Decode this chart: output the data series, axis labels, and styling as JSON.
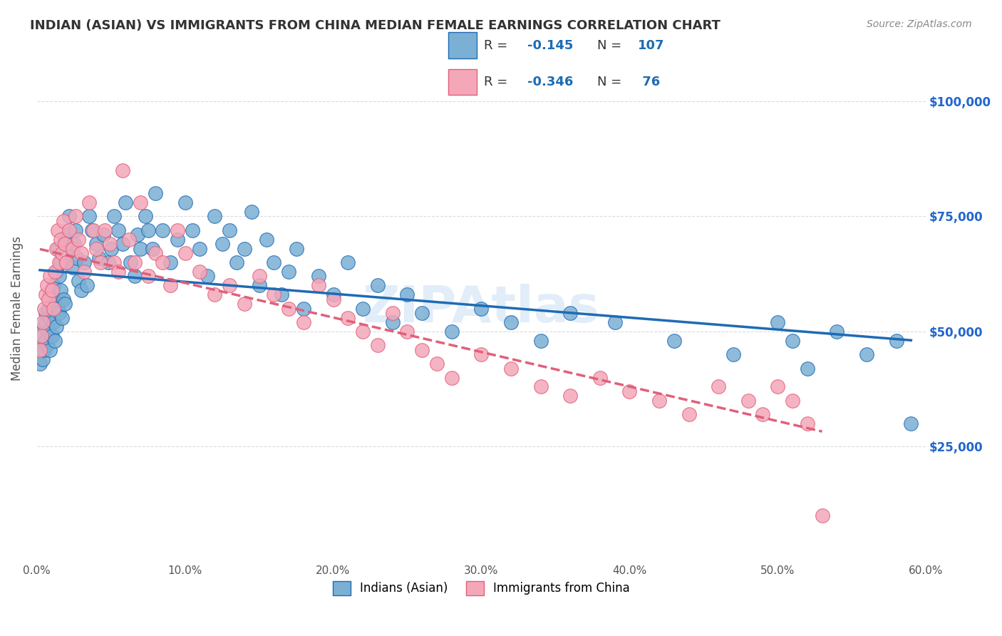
{
  "title": "INDIAN (ASIAN) VS IMMIGRANTS FROM CHINA MEDIAN FEMALE EARNINGS CORRELATION CHART",
  "source": "Source: ZipAtlas.com",
  "ylabel": "Median Female Earnings",
  "xlabel": "",
  "watermark": "ZIPAtlas",
  "legend_r1": "R = ",
  "legend_r1_val": "-0.145",
  "legend_n1": "N = ",
  "legend_n1_val": "107",
  "legend_r2": "R = ",
  "legend_r2_val": "-0.346",
  "legend_n2": "N = ",
  "legend_n2_val": " 76",
  "legend_label1": "Indians (Asian)",
  "legend_label2": "Immigrants from China",
  "xlim": [
    0.0,
    0.6
  ],
  "ylim": [
    0,
    110000
  ],
  "xticks": [
    0.0,
    0.1,
    0.2,
    0.3,
    0.4,
    0.5,
    0.6
  ],
  "xtick_labels": [
    "0.0%",
    "10.0%",
    "20.0%",
    "30.0%",
    "40.0%",
    "50.0%",
    "60.0%"
  ],
  "yticks": [
    25000,
    50000,
    75000,
    100000
  ],
  "ytick_labels": [
    "$25,000",
    "$50,000",
    "$75,000",
    "$100,000"
  ],
  "color_blue": "#7BAFD4",
  "color_pink": "#F4A7B9",
  "color_blue_line": "#1E6BB5",
  "color_pink_line": "#E0607A",
  "color_blue_dark": "#2255AA",
  "color_pink_dark": "#E05080",
  "background_color": "#FFFFFF",
  "grid_color": "#CCCCCC",
  "title_color": "#333333",
  "right_axis_color": "#2266CC",
  "seed": 42,
  "blue_x": [
    0.002,
    0.003,
    0.004,
    0.004,
    0.005,
    0.005,
    0.006,
    0.006,
    0.006,
    0.007,
    0.008,
    0.008,
    0.009,
    0.009,
    0.009,
    0.01,
    0.01,
    0.011,
    0.011,
    0.012,
    0.012,
    0.013,
    0.013,
    0.014,
    0.014,
    0.015,
    0.015,
    0.016,
    0.016,
    0.017,
    0.018,
    0.019,
    0.019,
    0.02,
    0.021,
    0.022,
    0.023,
    0.024,
    0.025,
    0.026,
    0.027,
    0.028,
    0.03,
    0.032,
    0.034,
    0.035,
    0.037,
    0.04,
    0.042,
    0.045,
    0.048,
    0.05,
    0.052,
    0.055,
    0.058,
    0.06,
    0.063,
    0.066,
    0.068,
    0.07,
    0.073,
    0.075,
    0.078,
    0.08,
    0.085,
    0.09,
    0.095,
    0.1,
    0.105,
    0.11,
    0.115,
    0.12,
    0.125,
    0.13,
    0.135,
    0.14,
    0.145,
    0.15,
    0.155,
    0.16,
    0.165,
    0.17,
    0.175,
    0.18,
    0.19,
    0.2,
    0.21,
    0.22,
    0.23,
    0.24,
    0.25,
    0.26,
    0.28,
    0.3,
    0.32,
    0.34,
    0.36,
    0.39,
    0.43,
    0.47,
    0.5,
    0.51,
    0.52,
    0.54,
    0.56,
    0.58,
    0.59
  ],
  "blue_y": [
    43000,
    47000,
    44000,
    49000,
    46000,
    51000,
    48000,
    52000,
    54000,
    47000,
    50000,
    55000,
    46000,
    53000,
    58000,
    49000,
    56000,
    52000,
    60000,
    48000,
    57000,
    51000,
    63000,
    55000,
    68000,
    54000,
    62000,
    59000,
    65000,
    53000,
    57000,
    56000,
    70000,
    65000,
    71000,
    75000,
    68000,
    64000,
    69000,
    72000,
    66000,
    61000,
    59000,
    65000,
    60000,
    75000,
    72000,
    69000,
    66000,
    71000,
    65000,
    68000,
    75000,
    72000,
    69000,
    78000,
    65000,
    62000,
    71000,
    68000,
    75000,
    72000,
    68000,
    80000,
    72000,
    65000,
    70000,
    78000,
    72000,
    68000,
    62000,
    75000,
    69000,
    72000,
    65000,
    68000,
    76000,
    60000,
    70000,
    65000,
    58000,
    63000,
    68000,
    55000,
    62000,
    58000,
    65000,
    55000,
    60000,
    52000,
    58000,
    54000,
    50000,
    55000,
    52000,
    48000,
    54000,
    52000,
    48000,
    45000,
    52000,
    48000,
    42000,
    50000,
    45000,
    48000,
    30000
  ],
  "pink_x": [
    0.002,
    0.003,
    0.004,
    0.005,
    0.006,
    0.007,
    0.008,
    0.009,
    0.01,
    0.011,
    0.012,
    0.013,
    0.014,
    0.015,
    0.016,
    0.017,
    0.018,
    0.019,
    0.02,
    0.022,
    0.024,
    0.026,
    0.028,
    0.03,
    0.032,
    0.035,
    0.038,
    0.04,
    0.043,
    0.046,
    0.049,
    0.052,
    0.055,
    0.058,
    0.062,
    0.066,
    0.07,
    0.075,
    0.08,
    0.085,
    0.09,
    0.095,
    0.1,
    0.11,
    0.12,
    0.13,
    0.14,
    0.15,
    0.16,
    0.17,
    0.18,
    0.19,
    0.2,
    0.21,
    0.22,
    0.23,
    0.24,
    0.25,
    0.26,
    0.27,
    0.28,
    0.3,
    0.32,
    0.34,
    0.36,
    0.38,
    0.4,
    0.42,
    0.44,
    0.46,
    0.48,
    0.49,
    0.5,
    0.51,
    0.52,
    0.53
  ],
  "pink_y": [
    46000,
    49000,
    52000,
    55000,
    58000,
    60000,
    57000,
    62000,
    59000,
    55000,
    63000,
    68000,
    72000,
    65000,
    70000,
    67000,
    74000,
    69000,
    65000,
    72000,
    68000,
    75000,
    70000,
    67000,
    63000,
    78000,
    72000,
    68000,
    65000,
    72000,
    69000,
    65000,
    63000,
    85000,
    70000,
    65000,
    78000,
    62000,
    67000,
    65000,
    60000,
    72000,
    67000,
    63000,
    58000,
    60000,
    56000,
    62000,
    58000,
    55000,
    52000,
    60000,
    57000,
    53000,
    50000,
    47000,
    54000,
    50000,
    46000,
    43000,
    40000,
    45000,
    42000,
    38000,
    36000,
    40000,
    37000,
    35000,
    32000,
    38000,
    35000,
    32000,
    38000,
    35000,
    30000,
    10000
  ]
}
